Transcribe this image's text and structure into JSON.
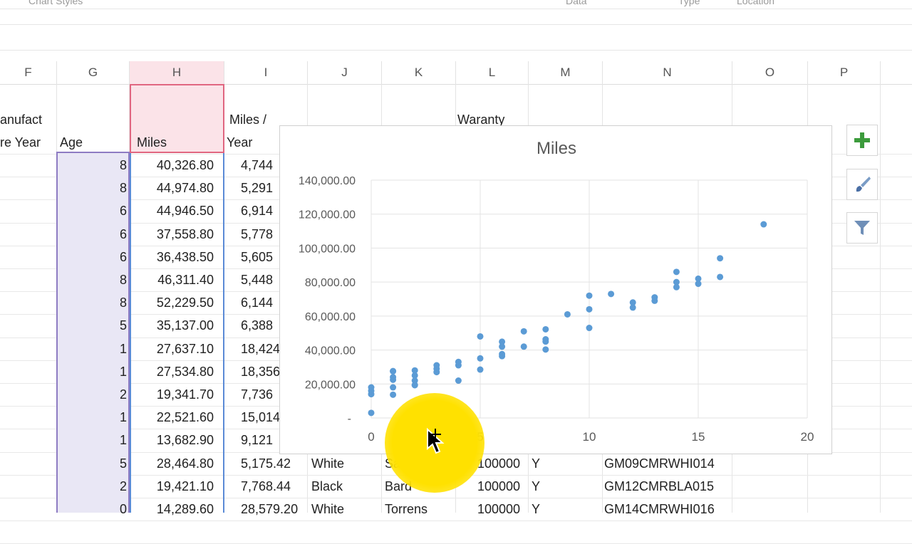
{
  "ribbon": {
    "group_chart_styles": "Chart Styles",
    "group_data": "Data",
    "group_type": "Type",
    "group_location": "Location"
  },
  "columns": [
    "F",
    "G",
    "H",
    "I",
    "J",
    "K",
    "L",
    "M",
    "N",
    "O",
    "P"
  ],
  "headers": {
    "f_line1": "anufact",
    "f_line2": "re Year",
    "g": "Age",
    "h": "Miles",
    "i_line1": "Miles /",
    "i_line2": "Year",
    "l_line1": "Waranty"
  },
  "rows": [
    {
      "age": "8",
      "miles": "40,326.80",
      "per_year": "4,744"
    },
    {
      "age": "8",
      "miles": "44,974.80",
      "per_year": "5,291"
    },
    {
      "age": "6",
      "miles": "44,946.50",
      "per_year": "6,914"
    },
    {
      "age": "6",
      "miles": "37,558.80",
      "per_year": "5,778"
    },
    {
      "age": "6",
      "miles": "36,438.50",
      "per_year": "5,605"
    },
    {
      "age": "8",
      "miles": "46,311.40",
      "per_year": "5,448"
    },
    {
      "age": "8",
      "miles": "52,229.50",
      "per_year": "6,144"
    },
    {
      "age": "5",
      "miles": "35,137.00",
      "per_year": "6,388"
    },
    {
      "age": "1",
      "miles": "27,637.10",
      "per_year": "18,424"
    },
    {
      "age": "1",
      "miles": "27,534.80",
      "per_year": "18,356"
    },
    {
      "age": "2",
      "miles": "19,341.70",
      "per_year": "7,736"
    },
    {
      "age": "1",
      "miles": "22,521.60",
      "per_year": "15,014"
    },
    {
      "age": "1",
      "miles": "13,682.90",
      "per_year": "9,121"
    },
    {
      "age": "5",
      "miles": "28,464.80",
      "per_year": "5,175.42",
      "color": "White",
      "name": "Santos",
      "warranty": "100000",
      "flag": "Y",
      "vin": "GM09CMRWHI014"
    },
    {
      "age": "2",
      "miles": "19,421.10",
      "per_year": "7,768.44",
      "color": "Black",
      "name": "Bard",
      "warranty": "100000",
      "flag": "Y",
      "vin": "GM12CMRBLA015"
    },
    {
      "age": "0",
      "miles": "14,289.60",
      "per_year": "28,579.20",
      "color": "White",
      "name": "Torrens",
      "warranty": "100000",
      "flag": "Y",
      "vin": "GM14CMRWHI016"
    }
  ],
  "chart_data": {
    "type": "scatter",
    "title": "Miles",
    "xlabel": "",
    "ylabel": "",
    "xlim": [
      0,
      20
    ],
    "ylim": [
      0,
      140000
    ],
    "x_ticks": [
      "0",
      "5",
      "10",
      "15",
      "20"
    ],
    "y_ticks": [
      "-",
      "20,000.00",
      "40,000.00",
      "60,000.00",
      "80,000.00",
      "100,000.00",
      "120,000.00",
      "140,000.00"
    ],
    "grid": true,
    "legend": "none",
    "color": "#5b9bd5",
    "points": [
      [
        0,
        3000
      ],
      [
        0,
        14000
      ],
      [
        0,
        16000
      ],
      [
        0,
        18000
      ],
      [
        1,
        13700
      ],
      [
        1,
        18000
      ],
      [
        1,
        22500
      ],
      [
        1,
        24000
      ],
      [
        1,
        27500
      ],
      [
        1,
        27600
      ],
      [
        2,
        19300
      ],
      [
        2,
        19400
      ],
      [
        2,
        22000
      ],
      [
        2,
        25000
      ],
      [
        2,
        28000
      ],
      [
        3,
        27000
      ],
      [
        3,
        29000
      ],
      [
        3,
        31000
      ],
      [
        4,
        22000
      ],
      [
        4,
        31000
      ],
      [
        4,
        33000
      ],
      [
        5,
        28500
      ],
      [
        5,
        35100
      ],
      [
        5,
        48000
      ],
      [
        6,
        36400
      ],
      [
        6,
        37600
      ],
      [
        6,
        42000
      ],
      [
        6,
        44900
      ],
      [
        7,
        42000
      ],
      [
        7,
        51000
      ],
      [
        8,
        40300
      ],
      [
        8,
        45000
      ],
      [
        8,
        46300
      ],
      [
        8,
        52200
      ],
      [
        9,
        61000
      ],
      [
        10,
        53000
      ],
      [
        10,
        64000
      ],
      [
        10,
        72000
      ],
      [
        11,
        73000
      ],
      [
        12,
        65000
      ],
      [
        12,
        68000
      ],
      [
        13,
        69000
      ],
      [
        13,
        71000
      ],
      [
        14,
        77000
      ],
      [
        14,
        80000
      ],
      [
        14,
        86000
      ],
      [
        15,
        79000
      ],
      [
        15,
        82000
      ],
      [
        16,
        83000
      ],
      [
        16,
        94000
      ],
      [
        18,
        114000
      ]
    ]
  },
  "chart_buttons": {
    "add": "chart-elements",
    "style": "chart-styles",
    "filter": "chart-filters"
  },
  "accent_colors": {
    "series": "#5b9bd5",
    "plus": "#3c9b3c",
    "age_highlight": "#8e7cc3",
    "miles_highlight": "#e06680",
    "cursor": "#ffe100"
  }
}
